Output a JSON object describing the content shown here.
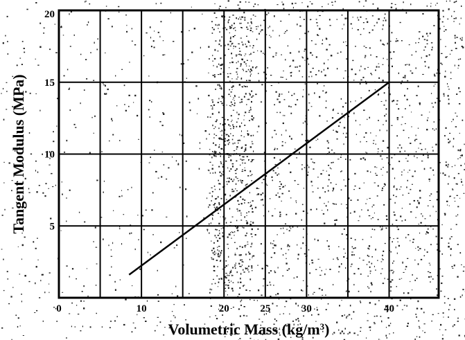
{
  "chart_data": {
    "type": "line",
    "title": "",
    "xlabel": "Volumetric Mass (kg/m",
    "xlabel_sup": "3",
    "xlabel_end": ")",
    "ylabel": "Tangent Modulus (MPa)",
    "xlim": [
      0,
      46
    ],
    "ylim": [
      0,
      20
    ],
    "x_ticks": [
      0,
      10,
      20,
      25,
      30,
      40
    ],
    "y_ticks": [
      5,
      10,
      15,
      20
    ],
    "grid": true,
    "legend": "none",
    "series": [
      {
        "x": [
          8.5,
          40
        ],
        "y": [
          1.6,
          15
        ]
      }
    ],
    "colors": {
      "line": "#000000",
      "grid": "#000000",
      "background": "#ffffff",
      "noise": "#222222"
    }
  }
}
